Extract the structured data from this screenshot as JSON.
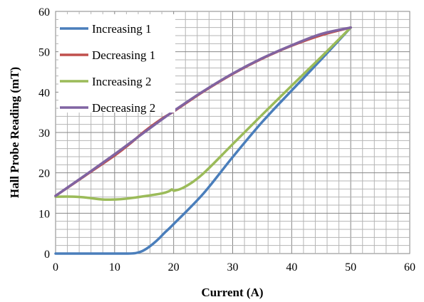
{
  "chart_data": {
    "type": "line",
    "xlabel": "Current (A)",
    "ylabel": "Hall Probe Reading (mT)",
    "xlim": [
      0,
      60
    ],
    "ylim": [
      0,
      60
    ],
    "xticks": [
      "0",
      "10",
      "20",
      "30",
      "40",
      "50",
      "60"
    ],
    "yticks": [
      "0",
      "10",
      "20",
      "30",
      "40",
      "50",
      "60"
    ],
    "grid": true,
    "legend_position": "top-left",
    "series": [
      {
        "name": "Increasing 1",
        "color": "#4a7ebb",
        "points": [
          [
            0,
            0
          ],
          [
            5,
            0
          ],
          [
            10,
            0
          ],
          [
            12,
            0
          ],
          [
            13.5,
            0.1
          ],
          [
            14.5,
            0.5
          ],
          [
            15.5,
            1.3
          ],
          [
            16.5,
            2.4
          ],
          [
            17.5,
            3.7
          ],
          [
            18.5,
            5.2
          ],
          [
            20,
            7.3
          ],
          [
            25,
            14.8
          ],
          [
            30,
            23.9
          ],
          [
            35,
            32.6
          ],
          [
            40,
            40.4
          ],
          [
            45,
            48.1
          ],
          [
            50,
            56
          ]
        ]
      },
      {
        "name": "Decreasing 1",
        "color": "#c0504d",
        "points": [
          [
            0,
            14.3
          ],
          [
            5,
            19.3
          ],
          [
            10,
            24.3
          ],
          [
            12.5,
            27.1
          ],
          [
            15,
            30.2
          ],
          [
            18,
            33.4
          ],
          [
            20,
            35.2
          ],
          [
            25,
            40.1
          ],
          [
            30,
            44.5
          ],
          [
            35,
            48.3
          ],
          [
            40,
            51.5
          ],
          [
            45,
            54.1
          ],
          [
            50,
            56
          ]
        ]
      },
      {
        "name": "Increasing 2",
        "color": "#9bbb59",
        "points": [
          [
            0,
            14.1
          ],
          [
            3,
            14.1
          ],
          [
            5,
            13.9
          ],
          [
            8,
            13.4
          ],
          [
            10,
            13.4
          ],
          [
            12,
            13.6
          ],
          [
            15,
            14.2
          ],
          [
            18,
            14.9
          ],
          [
            19.3,
            15.5
          ],
          [
            19.7,
            15.9
          ],
          [
            20.2,
            15.6
          ],
          [
            22,
            16.6
          ],
          [
            25,
            19.8
          ],
          [
            30,
            27.1
          ],
          [
            35,
            34.4
          ],
          [
            40,
            41.6
          ],
          [
            45,
            48.7
          ],
          [
            50,
            56
          ]
        ]
      },
      {
        "name": "Decreasing 2",
        "color": "#8064a2",
        "points": [
          [
            0,
            14.3
          ],
          [
            5,
            19.4
          ],
          [
            10,
            24.6
          ],
          [
            15,
            30.0
          ],
          [
            20,
            35.3
          ],
          [
            25,
            40.2
          ],
          [
            30,
            44.6
          ],
          [
            35,
            48.4
          ],
          [
            40,
            51.6
          ],
          [
            45,
            54.4
          ],
          [
            50,
            56
          ]
        ]
      }
    ]
  }
}
